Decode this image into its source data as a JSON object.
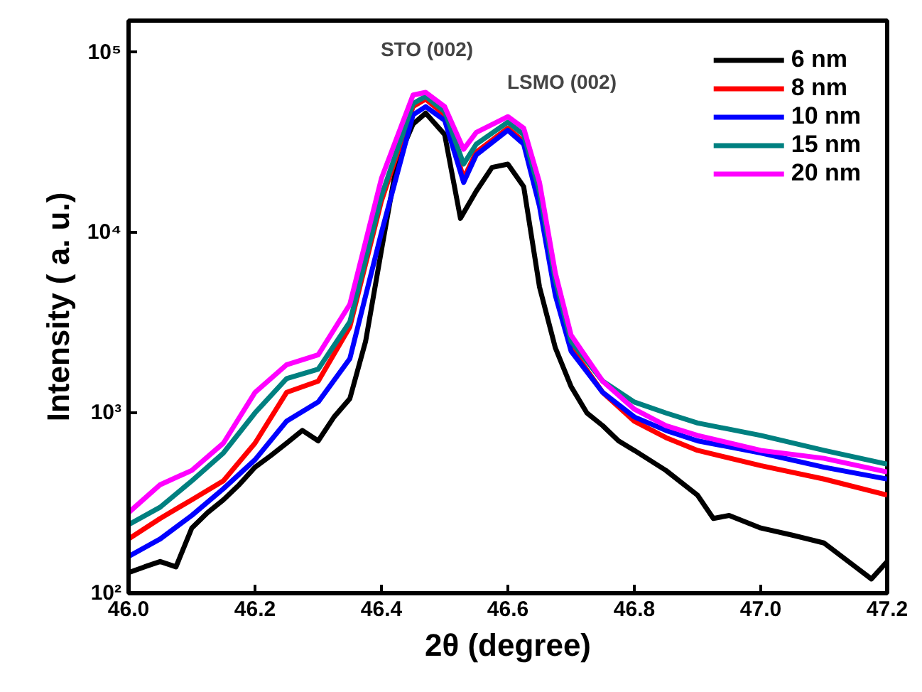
{
  "chart_data": {
    "type": "line",
    "xlabel": "2θ (degree)",
    "ylabel": "Intensity ( a. u.)",
    "log": "y",
    "xlim": [
      46.0,
      47.2
    ],
    "ylim": [
      100,
      150000
    ],
    "xticks": [
      {
        "value": 46.0,
        "label": "46.0"
      },
      {
        "value": 46.2,
        "label": "46.2"
      },
      {
        "value": 46.4,
        "label": "46.4"
      },
      {
        "value": 46.6,
        "label": "46.6"
      },
      {
        "value": 46.8,
        "label": "46.8"
      },
      {
        "value": 47.0,
        "label": "47.0"
      },
      {
        "value": 47.2,
        "label": "47.2"
      }
    ],
    "yticks": [
      {
        "value": 100,
        "label": "10²"
      },
      {
        "value": 1000,
        "label": "10³"
      },
      {
        "value": 10000,
        "label": "10⁴"
      },
      {
        "value": 100000,
        "label": "10⁵"
      }
    ],
    "grid": false,
    "legend": "top right",
    "marker": "none",
    "line_style": "solid",
    "annotations": [
      "STO (002)",
      "LSMO (002)"
    ],
    "series": [
      {
        "name": "6 nm",
        "color": "#000000",
        "x": [
          46.0,
          46.025,
          46.05,
          46.075,
          46.1,
          46.125,
          46.15,
          46.175,
          46.2,
          46.225,
          46.25,
          46.275,
          46.3,
          46.325,
          46.35,
          46.375,
          46.4,
          46.425,
          46.45,
          46.47,
          46.5,
          46.525,
          46.55,
          46.575,
          46.6,
          46.625,
          46.65,
          46.675,
          46.7,
          46.725,
          46.75,
          46.775,
          46.8,
          46.85,
          46.9,
          46.925,
          46.95,
          47.0,
          47.05,
          47.1,
          47.15,
          47.175,
          47.2
        ],
        "values": [
          130,
          140,
          150,
          140,
          230,
          280,
          330,
          400,
          500,
          580,
          680,
          800,
          700,
          950,
          1200,
          2500,
          8000,
          25000,
          40000,
          46000,
          35000,
          12000,
          17000,
          23000,
          24000,
          18000,
          5000,
          2300,
          1400,
          1000,
          850,
          700,
          620,
          480,
          350,
          260,
          270,
          230,
          210,
          190,
          140,
          120,
          150
        ]
      },
      {
        "name": "8 nm",
        "color": "#ff0000",
        "x": [
          46.0,
          46.05,
          46.1,
          46.15,
          46.2,
          46.25,
          46.3,
          46.35,
          46.4,
          46.45,
          46.47,
          46.5,
          46.53,
          46.55,
          46.6,
          46.625,
          46.65,
          46.675,
          46.7,
          46.75,
          46.8,
          46.85,
          46.9,
          47.0,
          47.1,
          47.2
        ],
        "values": [
          200,
          260,
          330,
          420,
          680,
          1300,
          1500,
          3000,
          15000,
          50000,
          55000,
          45000,
          20000,
          28000,
          38000,
          32000,
          15000,
          5000,
          2300,
          1300,
          900,
          730,
          620,
          510,
          430,
          350
        ]
      },
      {
        "name": "10 nm",
        "color": "#0000ff",
        "x": [
          46.0,
          46.05,
          46.1,
          46.15,
          46.2,
          46.25,
          46.3,
          46.35,
          46.4,
          46.45,
          46.47,
          46.5,
          46.53,
          46.55,
          46.6,
          46.625,
          46.65,
          46.675,
          46.7,
          46.75,
          46.8,
          46.85,
          46.9,
          47.0,
          47.1,
          47.2
        ],
        "values": [
          160,
          200,
          270,
          380,
          550,
          900,
          1150,
          2000,
          10000,
          45000,
          50000,
          42000,
          19000,
          27000,
          37000,
          31000,
          14000,
          4500,
          2200,
          1300,
          950,
          800,
          700,
          600,
          500,
          430
        ]
      },
      {
        "name": "15 nm",
        "color": "#008080",
        "x": [
          46.0,
          46.05,
          46.1,
          46.15,
          46.2,
          46.25,
          46.3,
          46.35,
          46.4,
          46.45,
          46.47,
          46.5,
          46.53,
          46.55,
          46.6,
          46.625,
          46.65,
          46.675,
          46.7,
          46.75,
          46.8,
          46.85,
          46.9,
          47.0,
          47.1,
          47.2
        ],
        "values": [
          240,
          300,
          420,
          600,
          1000,
          1550,
          1750,
          3200,
          16000,
          52000,
          57000,
          47000,
          24000,
          31000,
          41000,
          35000,
          17000,
          5500,
          2500,
          1500,
          1150,
          1000,
          880,
          750,
          620,
          520
        ]
      },
      {
        "name": "20 nm",
        "color": "#ff00ff",
        "x": [
          46.0,
          46.05,
          46.1,
          46.15,
          46.2,
          46.25,
          46.3,
          46.35,
          46.4,
          46.45,
          46.47,
          46.5,
          46.53,
          46.55,
          46.6,
          46.625,
          46.65,
          46.675,
          46.7,
          46.75,
          46.8,
          46.85,
          46.9,
          47.0,
          47.1,
          47.2
        ],
        "values": [
          280,
          400,
          480,
          680,
          1300,
          1850,
          2100,
          4000,
          20000,
          58000,
          60000,
          50000,
          29000,
          36000,
          44000,
          38000,
          19000,
          6000,
          2700,
          1500,
          1050,
          850,
          750,
          620,
          560,
          470
        ]
      }
    ]
  }
}
